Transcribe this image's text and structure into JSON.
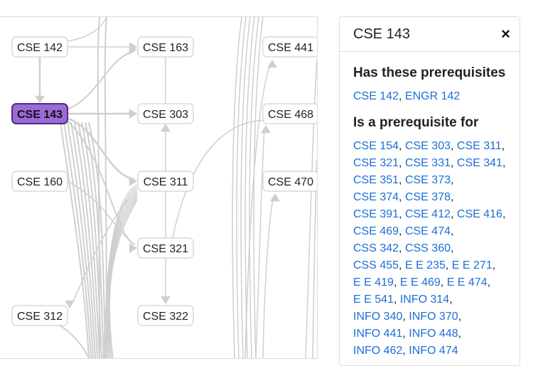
{
  "graph": {
    "nodes": [
      {
        "label": "CSE 142"
      },
      {
        "label": "CSE 143",
        "selected": true
      },
      {
        "label": "CSE 160"
      },
      {
        "label": "CSE 312"
      },
      {
        "label": "CSE 163"
      },
      {
        "label": "CSE 303"
      },
      {
        "label": "CSE 311"
      },
      {
        "label": "CSE 321"
      },
      {
        "label": "CSE 322"
      },
      {
        "label": "CSE 441"
      },
      {
        "label": "CSE 468"
      },
      {
        "label": "CSE 470"
      }
    ]
  },
  "panel": {
    "title": "CSE 143",
    "close": "×",
    "separator": ",",
    "sections": [
      {
        "heading": "Has these prerequisites",
        "lines": [
          [
            "CSE 142",
            "ENGR 142"
          ]
        ]
      },
      {
        "heading": "Is a prerequisite for",
        "lines": [
          [
            "CSE 154",
            "CSE 303",
            "CSE 311"
          ],
          [
            "CSE 321",
            "CSE 331",
            "CSE 341"
          ],
          [
            "CSE 351",
            "CSE 373"
          ],
          [
            "CSE 374",
            "CSE 378"
          ],
          [
            "CSE 391",
            "CSE 412",
            "CSE 416"
          ],
          [
            "CSE 469",
            "CSE 474"
          ],
          [
            "CSS 342",
            "CSS 360"
          ],
          [
            "CSS 455",
            "E E 235",
            "E E 271"
          ],
          [
            "E E 419",
            "E E 469",
            "E E 474"
          ],
          [
            "E E 541",
            "INFO 314"
          ],
          [
            "INFO 340",
            "INFO 370"
          ],
          [
            "INFO 441",
            "INFO 448"
          ],
          [
            "INFO 462",
            "INFO 474"
          ]
        ]
      }
    ]
  }
}
